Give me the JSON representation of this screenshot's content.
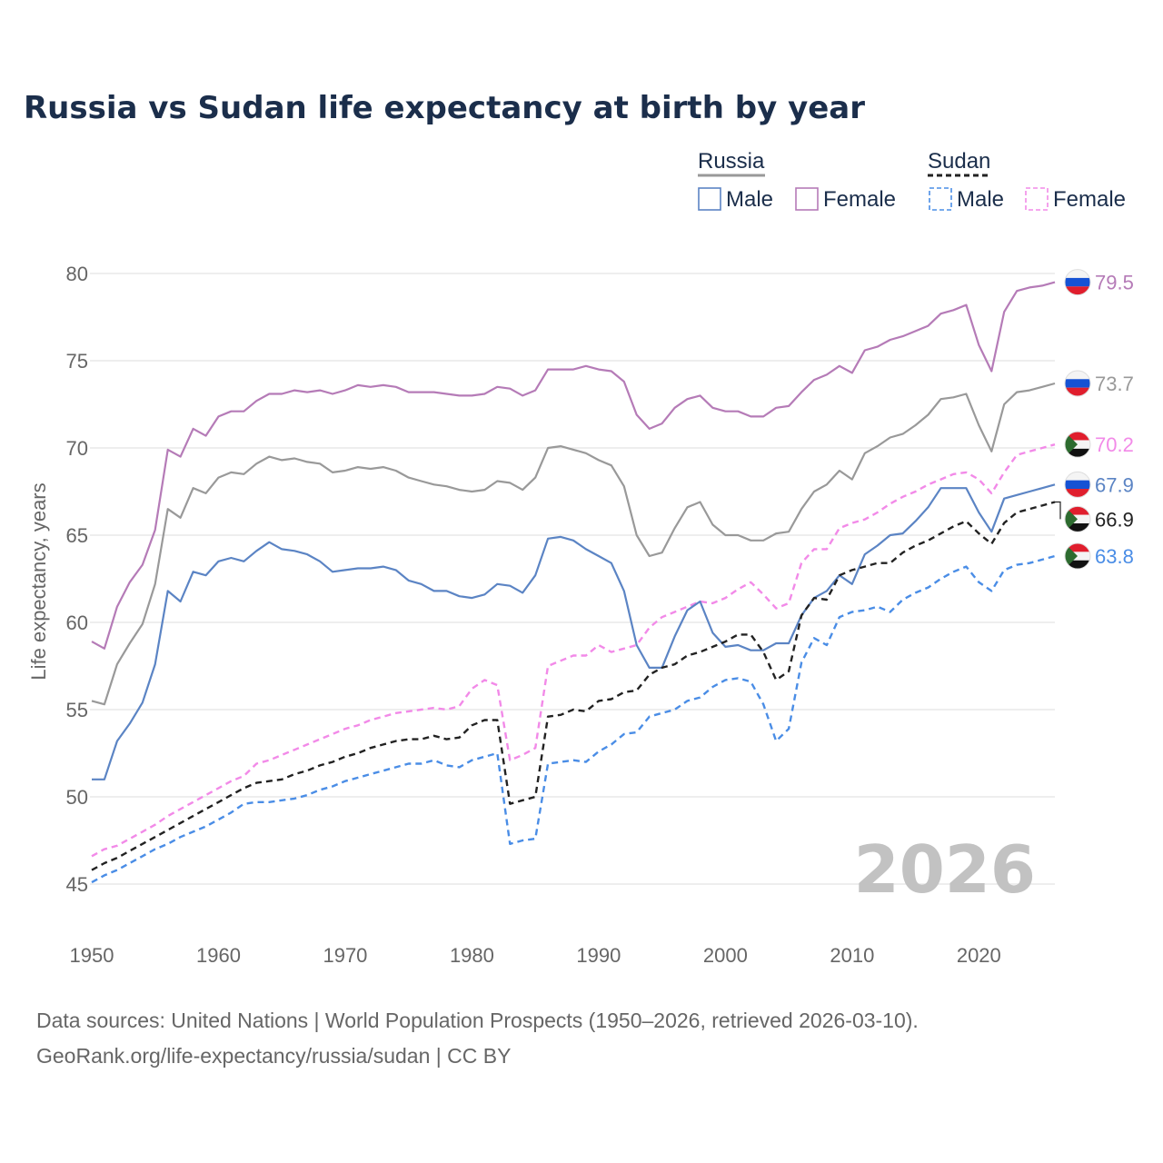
{
  "title": "Russia vs Sudan life expectancy at birth by year",
  "legend": {
    "groups": [
      {
        "name": "Russia",
        "style": "solid",
        "color": "#999999",
        "items": [
          {
            "label": "Male",
            "color": "#5b84c4"
          },
          {
            "label": "Female",
            "color": "#b57bb7"
          }
        ]
      },
      {
        "name": "Sudan",
        "style": "dashed",
        "color": "#222222",
        "items": [
          {
            "label": "Male",
            "color": "#4a8de6"
          },
          {
            "label": "Female",
            "color": "#f28ae8"
          }
        ]
      }
    ]
  },
  "current_year": "2026",
  "source": {
    "line1": "Data sources: United Nations | World Population Prospects (1950–2026, retrieved 2026-03-10).",
    "line2": "GeoRank.org/life-expectancy/russia/sudan | CC BY"
  },
  "chart_data": {
    "type": "line",
    "title": "Russia vs Sudan life expectancy at birth by year",
    "xlabel": "",
    "ylabel": "Life expectancy, years",
    "xlim": [
      1950,
      2026
    ],
    "ylim": [
      43,
      82
    ],
    "x_ticks": [
      1950,
      1960,
      1970,
      1980,
      1990,
      2000,
      2010,
      2020
    ],
    "y_ticks": [
      45,
      50,
      55,
      60,
      65,
      70,
      75,
      80
    ],
    "grid": true,
    "legend_position": "top-right",
    "x": [
      1950,
      1951,
      1952,
      1953,
      1954,
      1955,
      1956,
      1957,
      1958,
      1959,
      1960,
      1961,
      1962,
      1963,
      1964,
      1965,
      1966,
      1967,
      1968,
      1969,
      1970,
      1971,
      1972,
      1973,
      1974,
      1975,
      1976,
      1977,
      1978,
      1979,
      1980,
      1981,
      1982,
      1983,
      1984,
      1985,
      1986,
      1987,
      1988,
      1989,
      1990,
      1991,
      1992,
      1993,
      1994,
      1995,
      1996,
      1997,
      1998,
      1999,
      2000,
      2001,
      2002,
      2003,
      2004,
      2005,
      2006,
      2007,
      2008,
      2009,
      2010,
      2011,
      2012,
      2013,
      2014,
      2015,
      2016,
      2017,
      2018,
      2019,
      2020,
      2021,
      2022,
      2023,
      2024,
      2025,
      2026
    ],
    "series": [
      {
        "name": "Russia Female",
        "country": "Russia",
        "sex": "Female",
        "color": "#b57bb7",
        "dash": false,
        "end_label": "79.5",
        "values": [
          58.9,
          58.5,
          60.9,
          62.3,
          63.3,
          65.3,
          69.9,
          69.5,
          71.1,
          70.7,
          71.8,
          72.1,
          72.1,
          72.7,
          73.1,
          73.1,
          73.3,
          73.2,
          73.3,
          73.1,
          73.3,
          73.6,
          73.5,
          73.6,
          73.5,
          73.2,
          73.2,
          73.2,
          73.1,
          73.0,
          73.0,
          73.1,
          73.5,
          73.4,
          73.0,
          73.3,
          74.5,
          74.5,
          74.5,
          74.7,
          74.5,
          74.4,
          73.8,
          71.9,
          71.1,
          71.4,
          72.3,
          72.8,
          73.0,
          72.3,
          72.1,
          72.1,
          71.8,
          71.8,
          72.3,
          72.4,
          73.2,
          73.9,
          74.2,
          74.7,
          74.3,
          75.6,
          75.8,
          76.2,
          76.4,
          76.7,
          77.0,
          77.7,
          77.9,
          78.2,
          75.9,
          74.4,
          77.8,
          79.0,
          79.2,
          79.3,
          79.5
        ]
      },
      {
        "name": "Russia Total",
        "country": "Russia",
        "sex": "Total",
        "color": "#999999",
        "dash": false,
        "end_label": "73.7",
        "values": [
          55.5,
          55.3,
          57.6,
          58.8,
          59.9,
          62.2,
          66.5,
          66.0,
          67.7,
          67.4,
          68.3,
          68.6,
          68.5,
          69.1,
          69.5,
          69.3,
          69.4,
          69.2,
          69.1,
          68.6,
          68.7,
          68.9,
          68.8,
          68.9,
          68.7,
          68.3,
          68.1,
          67.9,
          67.8,
          67.6,
          67.5,
          67.6,
          68.1,
          68.0,
          67.6,
          68.3,
          70.0,
          70.1,
          69.9,
          69.7,
          69.3,
          69.0,
          67.8,
          65.0,
          63.8,
          64.0,
          65.4,
          66.6,
          66.9,
          65.6,
          65.0,
          65.0,
          64.7,
          64.7,
          65.1,
          65.2,
          66.5,
          67.5,
          67.9,
          68.7,
          68.2,
          69.7,
          70.1,
          70.6,
          70.8,
          71.3,
          71.9,
          72.8,
          72.9,
          73.1,
          71.3,
          69.8,
          72.5,
          73.2,
          73.3,
          73.5,
          73.7
        ]
      },
      {
        "name": "Sudan Female",
        "country": "Sudan",
        "sex": "Female",
        "color": "#f28ae8",
        "dash": true,
        "end_label": "70.2",
        "values": [
          46.6,
          47.0,
          47.2,
          47.6,
          48.0,
          48.4,
          48.9,
          49.3,
          49.7,
          50.1,
          50.5,
          50.9,
          51.2,
          51.9,
          52.1,
          52.4,
          52.7,
          53.0,
          53.3,
          53.6,
          53.9,
          54.1,
          54.4,
          54.6,
          54.8,
          54.9,
          55.0,
          55.1,
          55.0,
          55.2,
          56.2,
          56.7,
          56.4,
          52.1,
          52.4,
          52.8,
          57.5,
          57.8,
          58.1,
          58.1,
          58.7,
          58.3,
          58.5,
          58.7,
          59.7,
          60.3,
          60.6,
          60.9,
          61.2,
          61.1,
          61.4,
          61.9,
          62.3,
          61.6,
          60.8,
          61.1,
          63.4,
          64.2,
          64.2,
          65.4,
          65.7,
          65.9,
          66.3,
          66.8,
          67.2,
          67.5,
          67.9,
          68.2,
          68.5,
          68.6,
          68.2,
          67.4,
          68.6,
          69.6,
          69.8,
          70.0,
          70.2
        ]
      },
      {
        "name": "Russia Male",
        "country": "Russia",
        "sex": "Male",
        "color": "#5b84c4",
        "dash": false,
        "end_label": "67.9",
        "values": [
          51.0,
          51.0,
          53.2,
          54.2,
          55.4,
          57.6,
          61.8,
          61.2,
          62.9,
          62.7,
          63.5,
          63.7,
          63.5,
          64.1,
          64.6,
          64.2,
          64.1,
          63.9,
          63.5,
          62.9,
          63.0,
          63.1,
          63.1,
          63.2,
          63.0,
          62.4,
          62.2,
          61.8,
          61.8,
          61.5,
          61.4,
          61.6,
          62.2,
          62.1,
          61.7,
          62.7,
          64.8,
          64.9,
          64.7,
          64.2,
          63.8,
          63.4,
          61.8,
          58.7,
          57.4,
          57.4,
          59.2,
          60.7,
          61.2,
          59.4,
          58.6,
          58.7,
          58.4,
          58.4,
          58.8,
          58.8,
          60.4,
          61.4,
          61.8,
          62.7,
          62.2,
          63.9,
          64.4,
          65.0,
          65.1,
          65.8,
          66.6,
          67.7,
          67.7,
          67.7,
          66.3,
          65.2,
          67.1,
          67.3,
          67.5,
          67.7,
          67.9
        ]
      },
      {
        "name": "Sudan Total",
        "country": "Sudan",
        "sex": "Total",
        "color": "#222222",
        "dash": true,
        "end_label": "66.9",
        "values": [
          45.8,
          46.2,
          46.5,
          46.9,
          47.3,
          47.7,
          48.1,
          48.5,
          48.9,
          49.3,
          49.7,
          50.1,
          50.5,
          50.8,
          50.9,
          51.0,
          51.3,
          51.5,
          51.8,
          52.0,
          52.3,
          52.5,
          52.8,
          53.0,
          53.2,
          53.3,
          53.3,
          53.5,
          53.3,
          53.4,
          54.1,
          54.4,
          54.4,
          49.6,
          49.8,
          50.0,
          54.6,
          54.7,
          55.0,
          54.9,
          55.5,
          55.6,
          56.0,
          56.1,
          57.0,
          57.4,
          57.6,
          58.1,
          58.3,
          58.6,
          58.9,
          59.3,
          59.3,
          58.3,
          56.7,
          57.2,
          60.4,
          61.4,
          61.3,
          62.7,
          63.0,
          63.2,
          63.4,
          63.4,
          64.0,
          64.4,
          64.7,
          65.1,
          65.5,
          65.8,
          65.1,
          64.5,
          65.7,
          66.3,
          66.5,
          66.7,
          66.9
        ]
      },
      {
        "name": "Sudan Male",
        "country": "Sudan",
        "sex": "Male",
        "color": "#4a8de6",
        "dash": true,
        "end_label": "63.8",
        "values": [
          45.1,
          45.5,
          45.8,
          46.2,
          46.6,
          47.0,
          47.3,
          47.7,
          48.0,
          48.3,
          48.7,
          49.1,
          49.6,
          49.7,
          49.7,
          49.8,
          49.9,
          50.1,
          50.4,
          50.6,
          50.9,
          51.1,
          51.3,
          51.5,
          51.7,
          51.9,
          51.9,
          52.1,
          51.8,
          51.7,
          52.1,
          52.3,
          52.5,
          47.3,
          47.5,
          47.6,
          51.9,
          52.0,
          52.1,
          52.0,
          52.6,
          53.0,
          53.6,
          53.7,
          54.6,
          54.8,
          55.0,
          55.5,
          55.7,
          56.3,
          56.7,
          56.8,
          56.6,
          55.3,
          53.2,
          53.9,
          57.7,
          59.1,
          58.7,
          60.3,
          60.6,
          60.7,
          60.9,
          60.6,
          61.3,
          61.7,
          62.0,
          62.5,
          62.9,
          63.2,
          62.3,
          61.8,
          63.0,
          63.3,
          63.4,
          63.6,
          63.8
        ]
      }
    ]
  }
}
